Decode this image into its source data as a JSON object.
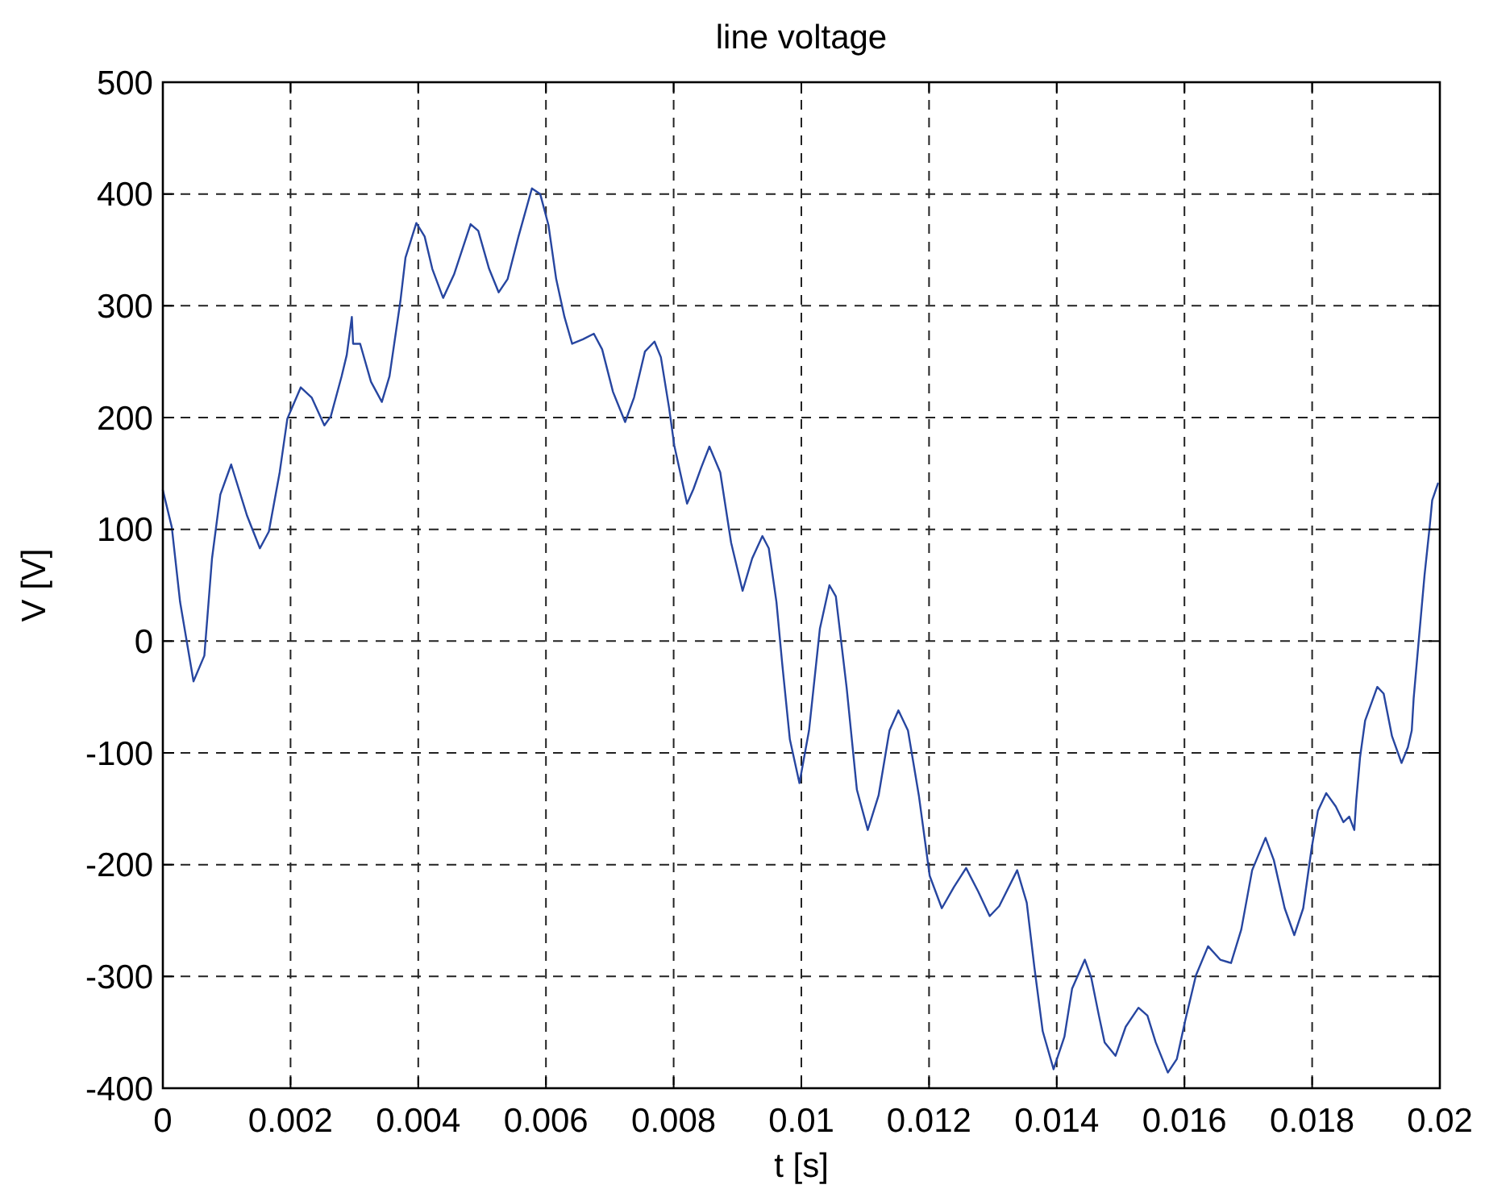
{
  "chart_data": {
    "type": "line",
    "title": "line voltage",
    "xlabel": "t [s]",
    "ylabel": "V [V]",
    "x": [
      0,
      0.00014,
      0.00027,
      0.00048,
      0.00065,
      0.00077,
      0.0009,
      0.00107,
      0.00132,
      0.00152,
      0.00166,
      0.00183,
      0.00195,
      0.00216,
      0.00233,
      0.00253,
      0.00263,
      0.0028,
      0.00288,
      0.00296,
      0.00298,
      0.00309,
      0.00326,
      0.00343,
      0.00355,
      0.00372,
      0.0038,
      0.00397,
      0.0041,
      0.00422,
      0.00439,
      0.00456,
      0.00482,
      0.00494,
      0.00511,
      0.00526,
      0.0054,
      0.00557,
      0.00578,
      0.00591,
      0.00604,
      0.00616,
      0.00629,
      0.00641,
      0.00658,
      0.00675,
      0.00688,
      0.00705,
      0.00724,
      0.00738,
      0.00755,
      0.0077,
      0.0078,
      0.00793,
      0.00801,
      0.00821,
      0.00831,
      0.00843,
      0.00856,
      0.00873,
      0.0089,
      0.00908,
      0.00923,
      0.00939,
      0.00949,
      0.00961,
      0.0097,
      0.00982,
      0.00997,
      0.01012,
      0.01029,
      0.01044,
      0.01054,
      0.01071,
      0.01087,
      0.01104,
      0.01121,
      0.01138,
      0.01152,
      0.01167,
      0.01184,
      0.01201,
      0.0122,
      0.01239,
      0.01258,
      0.01277,
      0.01295,
      0.0131,
      0.01338,
      0.01353,
      0.01365,
      0.01378,
      0.01395,
      0.01412,
      0.01424,
      0.01444,
      0.01454,
      0.01466,
      0.01475,
      0.01492,
      0.01508,
      0.01528,
      0.01542,
      0.01555,
      0.01574,
      0.01588,
      0.01601,
      0.01618,
      0.01637,
      0.01656,
      0.01673,
      0.01689,
      0.01706,
      0.01727,
      0.0174,
      0.01757,
      0.01772,
      0.01786,
      0.01799,
      0.01809,
      0.01822,
      0.01837,
      0.01849,
      0.01858,
      0.01866,
      0.01869,
      0.01875,
      0.01883,
      0.01902,
      0.01912,
      0.01925,
      0.0194,
      0.0195,
      0.01956,
      0.01959,
      0.01967,
      0.01976,
      0.01984,
      0.01988,
      0.01997
    ],
    "series": [
      {
        "color": "#2746a0",
        "values": [
          135,
          102,
          35,
          -36,
          -13,
          74,
          131,
          158,
          112,
          83,
          98,
          151,
          199,
          227,
          218,
          193,
          201,
          237,
          256,
          290,
          266,
          266,
          232,
          214,
          237,
          304,
          343,
          374,
          362,
          333,
          307,
          328,
          373,
          367,
          333,
          312,
          324,
          362,
          405,
          400,
          372,
          324,
          290,
          266,
          270,
          275,
          261,
          223,
          196,
          218,
          259,
          268,
          254,
          208,
          175,
          123,
          136,
          155,
          174,
          151,
          88,
          45,
          74,
          94,
          83,
          35,
          -20,
          -88,
          -127,
          -80,
          11,
          50,
          40,
          -42,
          -133,
          -169,
          -138,
          -80,
          -62,
          -80,
          -138,
          -210,
          -239,
          -220,
          -203,
          -224,
          -246,
          -237,
          -205,
          -234,
          -292,
          -349,
          -383,
          -354,
          -311,
          -285,
          -301,
          -335,
          -359,
          -371,
          -345,
          -328,
          -335,
          -359,
          -386,
          -374,
          -340,
          -299,
          -273,
          -285,
          -288,
          -258,
          -205,
          -176,
          -196,
          -239,
          -263,
          -239,
          -186,
          -152,
          -136,
          -148,
          -162,
          -157,
          -169,
          -143,
          -104,
          -71,
          -41,
          -47,
          -85,
          -109,
          -95,
          -80,
          -51,
          1,
          59,
          102,
          126,
          141
        ]
      }
    ],
    "xlim": [
      0,
      0.02
    ],
    "ylim": [
      -400,
      500
    ],
    "xticks": [
      0,
      0.002,
      0.004,
      0.006,
      0.008,
      0.01,
      0.012,
      0.014,
      0.016,
      0.018,
      0.02
    ],
    "yticks": [
      -400,
      -300,
      -200,
      -100,
      0,
      100,
      200,
      300,
      400,
      500
    ],
    "grid": true
  }
}
